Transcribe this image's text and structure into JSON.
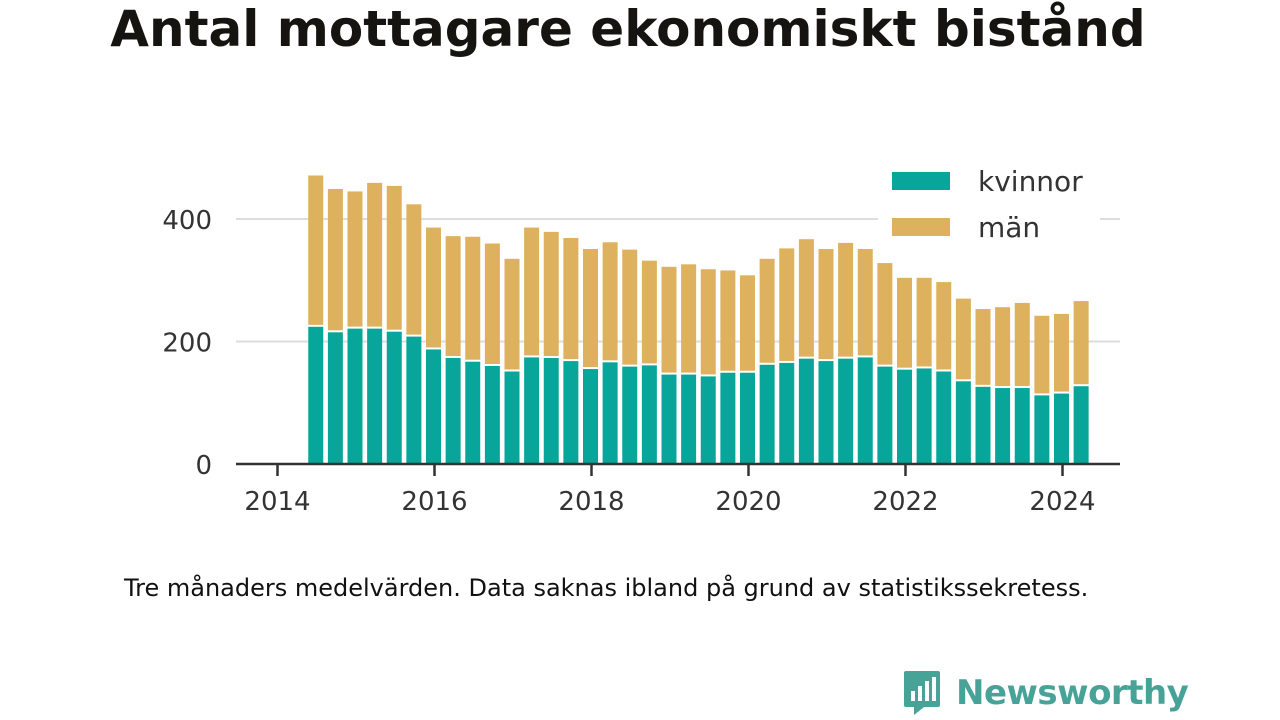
{
  "title": "Antal mottagare ekonomiskt bistånd",
  "note": "Tre månaders medelvärden. Data saknas ibland på grund av statistikssekretess.",
  "brand": {
    "name": "Newsworthy",
    "logo_icon": "newsworthy-logo-icon",
    "color": "#47a397"
  },
  "colors": {
    "kvinnor": "#08a59b",
    "man": "#ddb15e",
    "axis": "#333333",
    "grid": "#dddddd"
  },
  "chart_data": {
    "type": "bar",
    "stacked": true,
    "x_labels": [
      "2014",
      "2016",
      "2018",
      "2020",
      "2022",
      "2024"
    ],
    "y_ticks": [
      "0",
      "200",
      "400"
    ],
    "ylim": [
      0,
      470
    ],
    "grid": true,
    "legend_position": "top-right",
    "legend": [
      "kvinnor",
      "män"
    ],
    "periods": [
      "2014-Q2",
      "2014-Q3",
      "2014-Q4",
      "2015-Q1",
      "2015-Q2",
      "2015-Q3",
      "2015-Q4",
      "2016-Q1",
      "2016-Q2",
      "2016-Q3",
      "2016-Q4",
      "2017-Q1",
      "2017-Q2",
      "2017-Q3",
      "2017-Q4",
      "2018-Q1",
      "2018-Q2",
      "2018-Q3",
      "2018-Q4",
      "2019-Q1",
      "2019-Q2",
      "2019-Q3",
      "2019-Q4",
      "2020-Q1",
      "2020-Q2",
      "2020-Q3",
      "2020-Q4",
      "2021-Q1",
      "2021-Q2",
      "2021-Q3",
      "2021-Q4",
      "2022-Q1",
      "2022-Q2",
      "2022-Q3",
      "2022-Q4",
      "2023-Q1",
      "2023-Q2",
      "2023-Q3",
      "2023-Q4",
      "2024-Q1"
    ],
    "series": [
      {
        "name": "kvinnor",
        "values": [
          224,
          215,
          221,
          221,
          216,
          208,
          187,
          173,
          167,
          160,
          151,
          174,
          173,
          168,
          155,
          166,
          159,
          161,
          146,
          146,
          143,
          149,
          149,
          162,
          165,
          172,
          168,
          172,
          174,
          159,
          154,
          156,
          151,
          135,
          126,
          124,
          124,
          112,
          115,
          127
        ]
      },
      {
        "name": "män",
        "values": [
          247,
          234,
          224,
          238,
          238,
          216,
          199,
          199,
          204,
          200,
          184,
          212,
          206,
          201,
          196,
          196,
          191,
          171,
          176,
          180,
          175,
          167,
          159,
          173,
          187,
          195,
          183,
          189,
          177,
          169,
          150,
          148,
          146,
          135,
          127,
          132,
          139,
          130,
          130,
          139
        ]
      }
    ]
  }
}
